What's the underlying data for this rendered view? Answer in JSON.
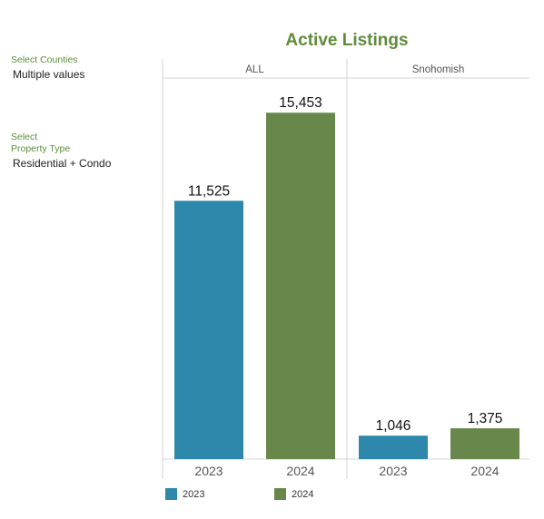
{
  "filters": {
    "counties": {
      "label": "Select Counties",
      "value": "Multiple values"
    },
    "property_type": {
      "label_line1": "Select",
      "label_line2": "Property Type",
      "value": "Residential + Condo"
    }
  },
  "colors": {
    "y2023": "#2d88ab",
    "y2024": "#67874b",
    "title": "#5e8c3a"
  },
  "chart_data": {
    "type": "bar",
    "title": "Active Listings",
    "panels": [
      {
        "name": "ALL",
        "categories": [
          "2023",
          "2024"
        ],
        "values": [
          11525,
          15453
        ],
        "labels": [
          "11,525",
          "15,453"
        ]
      },
      {
        "name": "Snohomish",
        "categories": [
          "2023",
          "2024"
        ],
        "values": [
          1046,
          1375
        ],
        "labels": [
          "1,046",
          "1,375"
        ]
      }
    ],
    "legend": [
      {
        "name": "2023",
        "color": "#2d88ab"
      },
      {
        "name": "2024",
        "color": "#67874b"
      }
    ],
    "ylim": [
      0,
      17000
    ],
    "legend_position": "bottom-left"
  }
}
